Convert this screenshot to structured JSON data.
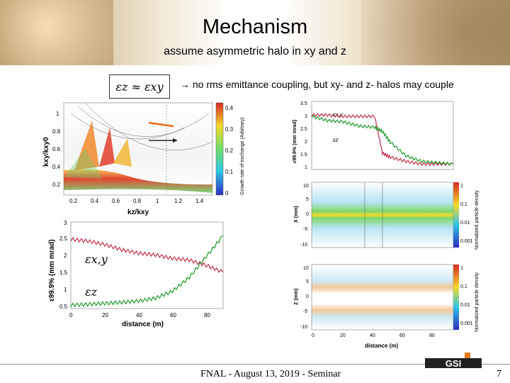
{
  "slide": {
    "title": "Mechanism",
    "subtitle": "assume asymmetric halo in xy and z",
    "equation": "εz ≈ εxy",
    "note": "no rms emittance coupling, but xy- and z- halos may couple",
    "note_arrow": "→",
    "footer": "FNAL - August 13, 2019 - Seminar",
    "page_number": "7",
    "logo_text": "GSI"
  },
  "stability_chart": {
    "xlabel": "kz/kxy",
    "ylabel": "kxy/kxy0",
    "colorbar_label": "Growth rate of exchange (Arbitrary)",
    "x_ticks": [
      "0.2",
      "0.4",
      "0.6",
      "0.8",
      "1",
      "1.2",
      "1.4"
    ],
    "y_ticks": [
      "0.2",
      "0.4",
      "0.6",
      "0.8",
      "1"
    ],
    "cb_ticks": [
      "0",
      "0.1",
      "0.2",
      "0.3",
      "0.4"
    ]
  },
  "emittance_chart": {
    "xlabel": "distance (m)",
    "ylabel": "ε99.9% (mm mrad)",
    "label_xy": "εx,y",
    "label_z": "εz",
    "x_ticks": [
      "0",
      "20",
      "40",
      "60",
      "80"
    ],
    "y_ticks": [
      "0.5",
      "1",
      "1.5",
      "2",
      "2.5",
      "3"
    ]
  },
  "right_emittance_chart": {
    "ylabel": "ε99.9% (mm mrad)",
    "label_xy": "εx,y",
    "label_z": "εz",
    "y_ticks": [
      "1",
      "1.5",
      "2",
      "2.5",
      "3",
      "3.5"
    ]
  },
  "x_density_chart": {
    "ylabel": "X (mm)",
    "colorbar_label": "Normalized particle density",
    "y_ticks": [
      "-10",
      "-5",
      "0",
      "5",
      "10"
    ],
    "cb_ticks": [
      "1",
      "0.1",
      "0.01",
      "0.001"
    ]
  },
  "z_density_chart": {
    "ylabel": "Z (mm)",
    "xlabel": "distance (m)",
    "colorbar_label": "Normalized particle density",
    "x_ticks": [
      "0",
      "20",
      "40",
      "60",
      "80"
    ],
    "y_ticks": [
      "-10",
      "-5",
      "0",
      "5",
      "10"
    ],
    "cb_ticks": [
      "1",
      "0.1",
      "0.01",
      "0.001"
    ]
  },
  "chart_data": [
    {
      "type": "heatmap",
      "xlabel": "kz/kxy",
      "ylabel": "kxy/kxy0",
      "xlim": [
        0.0,
        1.5
      ],
      "ylim": [
        0.0,
        1.1
      ],
      "colorbar": "Growth rate of exchange (Arbitrary)"
    },
    {
      "type": "line",
      "xlabel": "distance (m)",
      "ylabel": "ε99.9% (mm mrad)",
      "xlim": [
        0,
        90
      ],
      "ylim": [
        0.5,
        3
      ],
      "x": [
        0,
        10,
        20,
        30,
        40,
        50,
        60,
        70,
        80,
        90
      ],
      "series": [
        {
          "name": "εx,y",
          "values": [
            2.5,
            2.45,
            2.35,
            2.2,
            2.1,
            2.05,
            1.95,
            1.9,
            1.75,
            1.55
          ]
        },
        {
          "name": "εz",
          "values": [
            0.6,
            0.62,
            0.65,
            0.68,
            0.72,
            0.8,
            1.0,
            1.4,
            2.0,
            2.6
          ]
        }
      ]
    },
    {
      "type": "line",
      "ylabel": "ε99.9% (mm mrad)",
      "xlim": [
        0,
        90
      ],
      "ylim": [
        1,
        3.5
      ],
      "x": [
        0,
        10,
        20,
        30,
        40,
        45,
        50,
        60,
        70,
        80,
        90
      ],
      "series": [
        {
          "name": "εx,y",
          "values": [
            3.0,
            3.0,
            2.95,
            2.95,
            2.95,
            1.6,
            1.45,
            1.3,
            1.2,
            1.2,
            1.2
          ]
        },
        {
          "name": "εz",
          "values": [
            2.95,
            2.8,
            2.75,
            2.6,
            2.55,
            2.4,
            2.0,
            1.5,
            1.3,
            1.25,
            1.2
          ]
        }
      ]
    }
  ]
}
